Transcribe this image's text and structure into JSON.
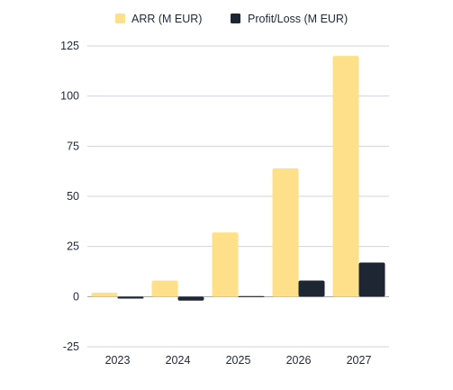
{
  "chart_data": {
    "type": "bar",
    "categories": [
      "2023",
      "2024",
      "2025",
      "2026",
      "2027"
    ],
    "series": [
      {
        "name": "ARR (M EUR)",
        "color": "#FFE08A",
        "values": [
          2,
          8,
          32,
          64,
          120
        ]
      },
      {
        "name": "Profit/Loss (M EUR)",
        "color": "#1E2633",
        "values": [
          -1,
          -2,
          0,
          8,
          17
        ]
      }
    ],
    "ylim": [
      -25,
      125
    ],
    "yticks": [
      125,
      100,
      75,
      50,
      25,
      0,
      -25
    ],
    "grid": true,
    "legend": "top-center"
  }
}
